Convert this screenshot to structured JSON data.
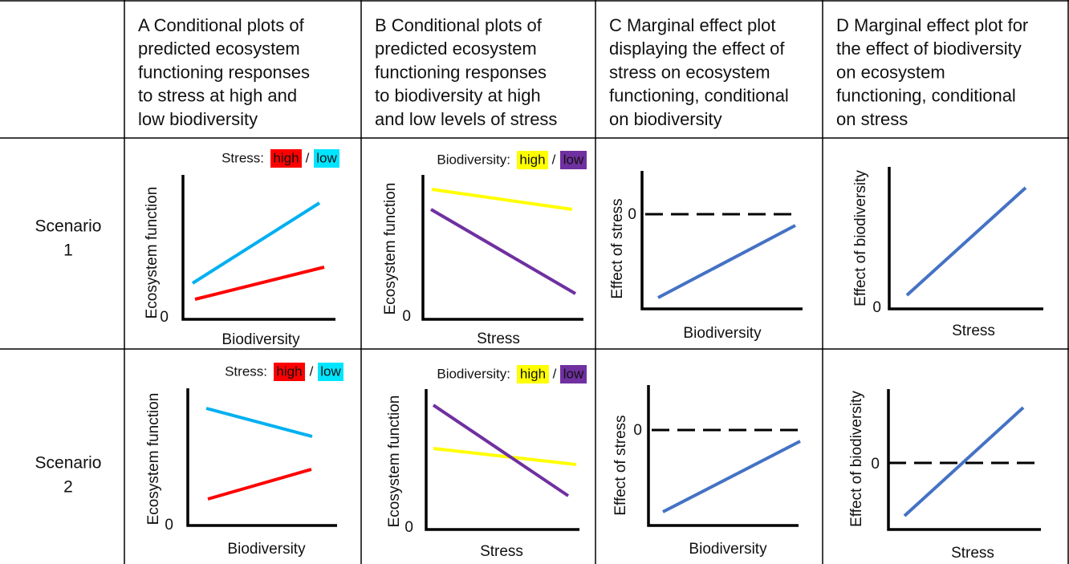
{
  "header": {
    "columns": [
      {
        "lines": [
          "A Conditional plots of",
          "predicted ecosystem",
          "functioning responses",
          "to stress at high and",
          "low biodiversity"
        ]
      },
      {
        "lines": [
          "B Conditional plots of",
          "predicted ecosystem",
          "functioning responses",
          "to biodiversity at high",
          "and low levels of stress"
        ]
      },
      {
        "lines": [
          "C Marginal effect plot",
          "displaying the effect of",
          "stress on ecosystem",
          "functioning, conditional",
          "on biodiversity"
        ]
      },
      {
        "lines": [
          "D Marginal effect plot for",
          "the effect of biodiversity",
          "on ecosystem",
          "functioning, conditional",
          "on stress"
        ]
      }
    ]
  },
  "rows": [
    {
      "label": [
        "Scenario",
        "1"
      ],
      "cells": [
        {
          "legend": {
            "title": "Stress:",
            "items": [
              "high",
              "/",
              "low"
            ]
          },
          "y_label": "Ecosystem function",
          "x_label": "Biodiversity",
          "zero": "0"
        },
        {
          "legend": {
            "title": "Biodiversity:",
            "items": [
              "high",
              "/",
              "low"
            ]
          },
          "y_label": "Ecosystem function",
          "x_label": "Stress",
          "zero": "0"
        },
        {
          "y_label": "Effect of stress",
          "x_label": "Biodiversity",
          "zero": "0"
        },
        {
          "y_label": "Effect of biodiversity",
          "x_label": "Stress",
          "zero": "0"
        }
      ]
    },
    {
      "label": [
        "Scenario",
        "2"
      ],
      "cells": [
        {
          "legend": {
            "title": "Stress:",
            "items": [
              "high",
              "/",
              "low"
            ]
          },
          "y_label": "Ecosystem function",
          "x_label": "Biodiversity",
          "zero": "0"
        },
        {
          "legend": {
            "title": "Biodiversity:",
            "items": [
              "high",
              "/",
              "low"
            ]
          },
          "y_label": "Ecosystem function",
          "x_label": "Stress",
          "zero": "0"
        },
        {
          "y_label": "Effect of stress",
          "x_label": "Biodiversity",
          "zero": "0"
        },
        {
          "y_label": "Effect of biodiversity",
          "x_label": "Stress",
          "zero": "0"
        }
      ]
    }
  ]
}
